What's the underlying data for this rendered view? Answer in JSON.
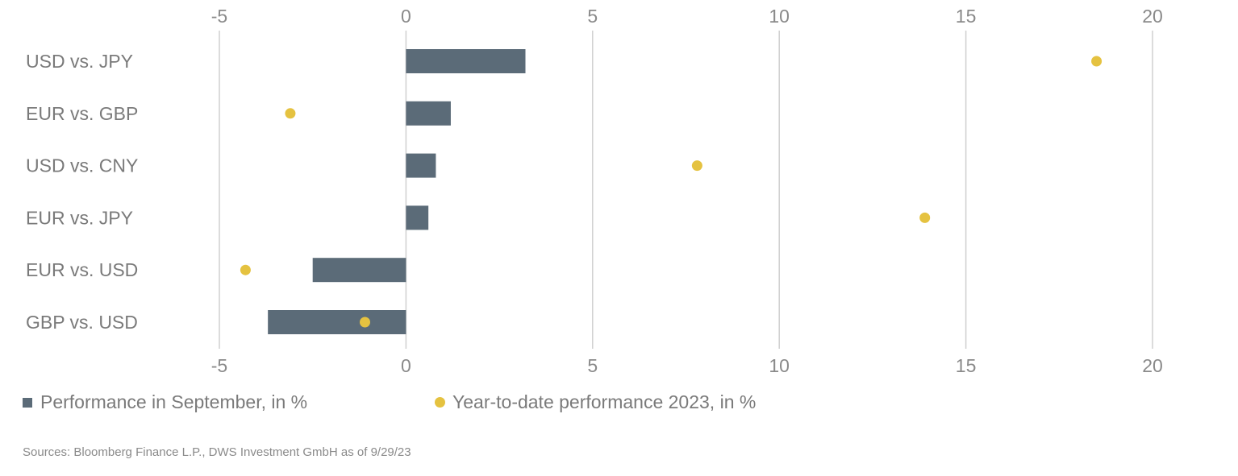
{
  "chart_data": {
    "type": "bar",
    "orientation": "horizontal",
    "categories": [
      "USD vs. JPY",
      "EUR vs. GBP",
      "USD vs. CNY",
      "EUR vs. JPY",
      "EUR vs. USD",
      "GBP vs. USD"
    ],
    "series": [
      {
        "name": "Performance in September, in %",
        "type": "bar",
        "values": [
          3.2,
          1.2,
          0.8,
          0.6,
          -2.5,
          -3.7
        ]
      },
      {
        "name": "Year-to-date performance 2023, in %",
        "type": "scatter",
        "values": [
          18.5,
          -3.1,
          7.8,
          13.9,
          -4.3,
          -1.1
        ]
      }
    ],
    "xlim": [
      -5,
      20
    ],
    "xticks": [
      "-5",
      "0",
      "5",
      "10",
      "15",
      "20"
    ],
    "grid": true,
    "legend_position": "bottom-left",
    "colors": {
      "bar": "#5b6b78",
      "dot": "#e5c240"
    }
  },
  "legend": {
    "bar_label": "Performance in September, in %",
    "dot_label": "Year-to-date performance 2023, in %"
  },
  "source": "Sources: Bloomberg Finance L.P., DWS Investment GmbH as of 9/29/23"
}
